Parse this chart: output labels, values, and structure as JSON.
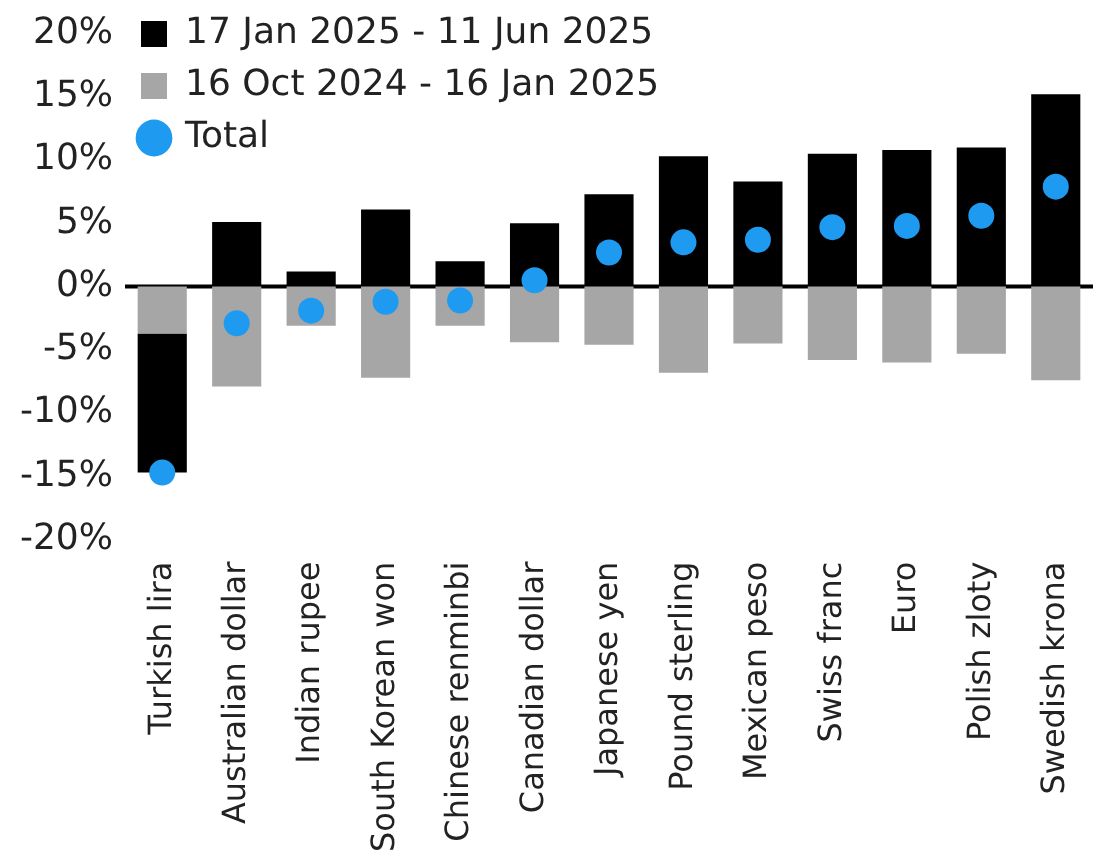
{
  "chart_data": {
    "type": "bar",
    "stacked": true,
    "categories": [
      "Turkish lira",
      "Australian dollar",
      "Indian rupee",
      "South Korean won",
      "Chinese renminbi",
      "Canadian dollar",
      "Japanese yen",
      "Pound sterling",
      "Mexican peso",
      "Swiss franc",
      "Euro",
      "Polish zloty",
      "Swedish krona"
    ],
    "series": [
      {
        "name": "16 Oct 2024 - 16 Jan 2025",
        "color": "#a6a6a6",
        "values": [
          -3.7,
          -7.9,
          -3.1,
          -7.2,
          -3.1,
          -4.4,
          -4.6,
          -6.8,
          -4.5,
          -5.8,
          -6.0,
          -5.3,
          -7.4
        ]
      },
      {
        "name": "17 Jan 2025 - 11 Jun 2025",
        "color": "#000000",
        "values": [
          -11.0,
          5.1,
          1.2,
          6.1,
          2.0,
          5.0,
          7.3,
          10.3,
          8.3,
          10.5,
          10.8,
          11.0,
          15.2
        ]
      },
      {
        "name": "Total",
        "type": "scatter",
        "color": "#1e9bf0",
        "x": [
          "Turkish lira",
          "Australian dollar",
          "Indian rupee",
          "South Korean won",
          "Chinese renminbi",
          "Canadian dollar",
          "Japanese yen",
          "Pound sterling",
          "Mexican peso",
          "Swiss franc",
          "Euro",
          "Polish zloty",
          "Swedish krona"
        ],
        "values": [
          -14.7,
          -2.9,
          -1.9,
          -1.2,
          -1.1,
          0.5,
          2.7,
          3.5,
          3.7,
          4.7,
          4.8,
          5.6,
          7.9
        ]
      }
    ],
    "ylim": [
      -20,
      20
    ],
    "yticks": [
      {
        "value": -20,
        "label": "-20%"
      },
      {
        "value": -15,
        "label": "-15%"
      },
      {
        "value": -10,
        "label": "-10%"
      },
      {
        "value": -5,
        "label": "-5%"
      },
      {
        "value": 0,
        "label": "0%"
      },
      {
        "value": 5,
        "label": "5%"
      },
      {
        "value": 10,
        "label": "10%"
      },
      {
        "value": 15,
        "label": "15%"
      },
      {
        "value": 20,
        "label": "20%"
      }
    ],
    "ref_lines": [
      {
        "axis": "y",
        "value": 0,
        "color": "#000000"
      }
    ],
    "grid": false,
    "legend": "top",
    "marker": "circle"
  }
}
